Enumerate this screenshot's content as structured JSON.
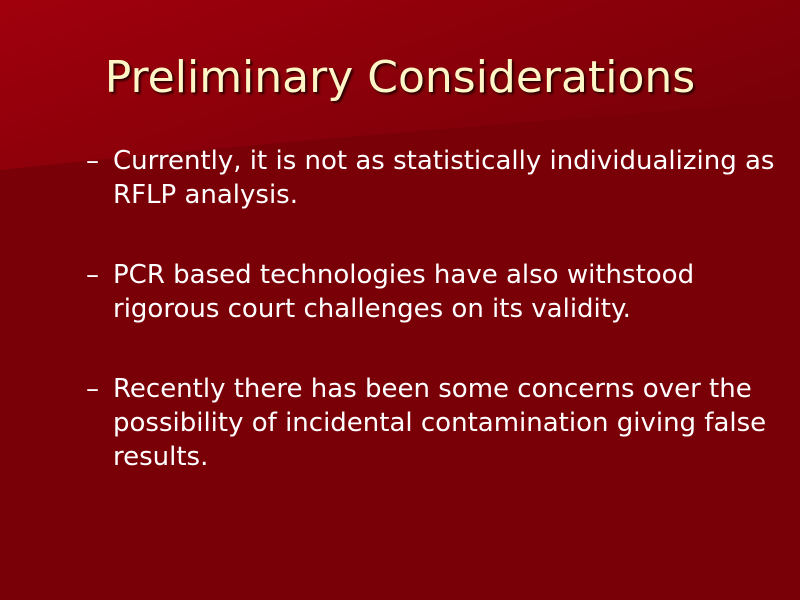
{
  "slide": {
    "title": "Preliminary Considerations",
    "bullet_marker": "–",
    "bullets": [
      "Currently, it is not as statistically individualizing as RFLP analysis.",
      "PCR based technologies have also withstood rigorous court challenges on its validity.",
      "Recently there has been some concerns over the possibility of incidental contamination giving false results."
    ]
  },
  "colors": {
    "background": "#7a0008",
    "title": "#fff6c8",
    "text": "#ffffff"
  }
}
